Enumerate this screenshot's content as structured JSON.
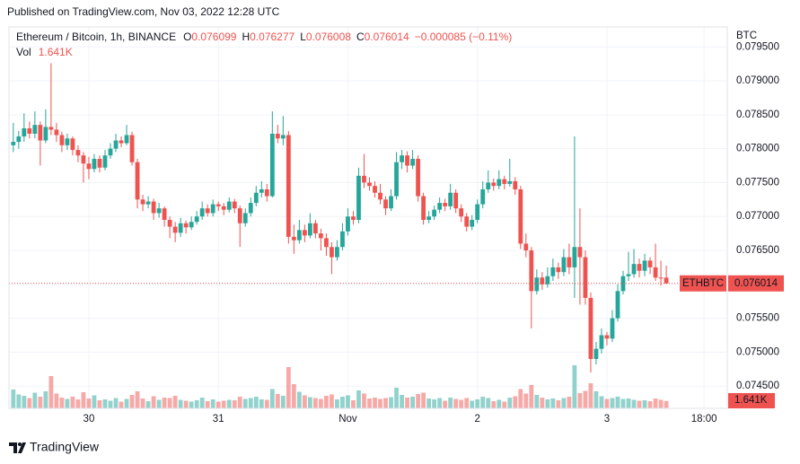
{
  "published": "Published on TradingView.com, Nov 03, 2022 12:28 UTC",
  "footer": "TradingView",
  "chart_data": {
    "type": "candlestick",
    "symbol": "ETHBTC",
    "currency": "BTC",
    "legend": {
      "name": "Ethereum / Bitcoin, 1h, BINANCE",
      "o_label": "O",
      "o": "0.076099",
      "h_label": "H",
      "h": "0.076277",
      "l_label": "L",
      "l": "0.076008",
      "c_label": "C",
      "c": "0.076014",
      "change": "−0.000085 (−0.11%)",
      "vol_label": "Vol"
    },
    "last_volume_label": "1.641K",
    "up_color": "#26a69a",
    "down_color": "#ef5350",
    "grid": true,
    "ylim": [
      0.074172,
      0.079794
    ],
    "yticks": [
      {
        "value": 0.0745,
        "label": "0.074500"
      },
      {
        "value": 0.075,
        "label": "0.075000"
      },
      {
        "value": 0.0755,
        "label": "0.075500"
      },
      {
        "value": 0.076,
        "label": "0.076000"
      },
      {
        "value": 0.0765,
        "label": "0.076500"
      },
      {
        "value": 0.077,
        "label": "0.077000"
      },
      {
        "value": 0.0775,
        "label": "0.077500"
      },
      {
        "value": 0.078,
        "label": "0.078000"
      },
      {
        "value": 0.0785,
        "label": "0.078500"
      },
      {
        "value": 0.079,
        "label": "0.079000"
      },
      {
        "value": 0.0795,
        "label": "0.079500"
      }
    ],
    "xlim": [
      -0.8,
      132.3
    ],
    "xticks": [
      {
        "value": 14,
        "label": "30"
      },
      {
        "value": 38,
        "label": "31"
      },
      {
        "value": 62,
        "label": "Nov"
      },
      {
        "value": 86,
        "label": "2"
      },
      {
        "value": 110,
        "label": "3"
      },
      {
        "value": 128,
        "label": "18:00"
      }
    ],
    "volume_lim": [
      0,
      20000
    ],
    "ohlcv": [
      [
        0.07805,
        0.07838,
        0.07795,
        0.0781,
        4200
      ],
      [
        0.0781,
        0.07826,
        0.078,
        0.07818,
        3100
      ],
      [
        0.07818,
        0.07852,
        0.0781,
        0.0783,
        2800
      ],
      [
        0.0783,
        0.0784,
        0.07815,
        0.07822,
        2300
      ],
      [
        0.07822,
        0.07855,
        0.07815,
        0.07835,
        3500
      ],
      [
        0.07835,
        0.0784,
        0.07775,
        0.07812,
        2600
      ],
      [
        0.07812,
        0.07858,
        0.07808,
        0.07832,
        3800
      ],
      [
        0.07832,
        0.07926,
        0.0782,
        0.07828,
        7200
      ],
      [
        0.07828,
        0.07838,
        0.0781,
        0.0782,
        3300
      ],
      [
        0.0782,
        0.07825,
        0.07795,
        0.07805,
        2400
      ],
      [
        0.07805,
        0.07822,
        0.07798,
        0.07815,
        2100
      ],
      [
        0.07815,
        0.07818,
        0.0779,
        0.07798,
        2600
      ],
      [
        0.07798,
        0.07805,
        0.0778,
        0.0779,
        2000
      ],
      [
        0.0779,
        0.07795,
        0.0775,
        0.07778,
        3600
      ],
      [
        0.07778,
        0.07788,
        0.07755,
        0.0777,
        2200
      ],
      [
        0.0777,
        0.07792,
        0.07765,
        0.07785,
        2900
      ],
      [
        0.07785,
        0.0779,
        0.07765,
        0.07772,
        1800
      ],
      [
        0.07772,
        0.07798,
        0.07768,
        0.0779,
        2000
      ],
      [
        0.0779,
        0.07808,
        0.07785,
        0.078,
        1700
      ],
      [
        0.078,
        0.07822,
        0.07795,
        0.07812,
        2300
      ],
      [
        0.07812,
        0.07818,
        0.07802,
        0.07808,
        1500
      ],
      [
        0.07808,
        0.07835,
        0.07805,
        0.0782,
        2100
      ],
      [
        0.0782,
        0.07825,
        0.07775,
        0.0778,
        3000
      ],
      [
        0.0778,
        0.07785,
        0.07712,
        0.07725,
        3800
      ],
      [
        0.07725,
        0.07732,
        0.07708,
        0.07718,
        2200
      ],
      [
        0.07718,
        0.0773,
        0.07712,
        0.07722,
        1600
      ],
      [
        0.07722,
        0.07726,
        0.07695,
        0.07705,
        2700
      ],
      [
        0.07705,
        0.0772,
        0.07698,
        0.07712,
        1900
      ],
      [
        0.07712,
        0.07715,
        0.07685,
        0.07695,
        2400
      ],
      [
        0.07695,
        0.077,
        0.07668,
        0.07685,
        2300
      ],
      [
        0.07685,
        0.07692,
        0.07662,
        0.07676,
        2800
      ],
      [
        0.07676,
        0.07698,
        0.0767,
        0.0769,
        1900
      ],
      [
        0.0769,
        0.07694,
        0.07675,
        0.07684,
        1700
      ],
      [
        0.07684,
        0.077,
        0.0768,
        0.07692,
        1500
      ],
      [
        0.07692,
        0.07708,
        0.07688,
        0.077,
        1800
      ],
      [
        0.077,
        0.07722,
        0.07695,
        0.07712,
        2400
      ],
      [
        0.07712,
        0.07718,
        0.077,
        0.07705,
        1600
      ],
      [
        0.07705,
        0.07725,
        0.077,
        0.07718,
        2000
      ],
      [
        0.07718,
        0.07722,
        0.07708,
        0.07715,
        1500
      ],
      [
        0.07715,
        0.0772,
        0.07702,
        0.0771,
        1700
      ],
      [
        0.0771,
        0.07728,
        0.07706,
        0.07722,
        1900
      ],
      [
        0.07722,
        0.07726,
        0.07705,
        0.07712,
        1800
      ],
      [
        0.07712,
        0.07716,
        0.07655,
        0.0769,
        2600
      ],
      [
        0.0769,
        0.07712,
        0.07685,
        0.07705,
        2100
      ],
      [
        0.07705,
        0.07728,
        0.077,
        0.0772,
        2300
      ],
      [
        0.0772,
        0.07745,
        0.07715,
        0.07735,
        2600
      ],
      [
        0.07735,
        0.07752,
        0.07728,
        0.0774,
        2000
      ],
      [
        0.0774,
        0.07748,
        0.07722,
        0.0773,
        1900
      ],
      [
        0.0773,
        0.07855,
        0.07728,
        0.07822,
        4300
      ],
      [
        0.07822,
        0.07835,
        0.07808,
        0.07815,
        3200
      ],
      [
        0.07815,
        0.07848,
        0.07805,
        0.0782,
        2800
      ],
      [
        0.0782,
        0.07826,
        0.0766,
        0.0767,
        9200
      ],
      [
        0.0767,
        0.07688,
        0.07645,
        0.07665,
        5400
      ],
      [
        0.07665,
        0.07695,
        0.0766,
        0.0768,
        3700
      ],
      [
        0.0768,
        0.07688,
        0.07662,
        0.07672,
        2900
      ],
      [
        0.07672,
        0.07705,
        0.07668,
        0.0769,
        2500
      ],
      [
        0.0769,
        0.07695,
        0.07668,
        0.07675,
        2300
      ],
      [
        0.07675,
        0.07682,
        0.0765,
        0.07668,
        2100
      ],
      [
        0.07668,
        0.07675,
        0.07642,
        0.07655,
        2800
      ],
      [
        0.07655,
        0.07662,
        0.07615,
        0.0764,
        3100
      ],
      [
        0.0764,
        0.07665,
        0.07635,
        0.07655,
        2000
      ],
      [
        0.07655,
        0.0769,
        0.0765,
        0.07678,
        2600
      ],
      [
        0.07678,
        0.07712,
        0.07672,
        0.077,
        2900
      ],
      [
        0.077,
        0.07708,
        0.07688,
        0.07695,
        1800
      ],
      [
        0.07695,
        0.07772,
        0.0769,
        0.0776,
        4000
      ],
      [
        0.0776,
        0.07792,
        0.07742,
        0.0775,
        3300
      ],
      [
        0.0775,
        0.07758,
        0.07738,
        0.07745,
        2200
      ],
      [
        0.07745,
        0.07752,
        0.07728,
        0.07735,
        2400
      ],
      [
        0.07735,
        0.07748,
        0.07718,
        0.07725,
        2100
      ],
      [
        0.07725,
        0.0773,
        0.07702,
        0.07712,
        2300
      ],
      [
        0.07712,
        0.0774,
        0.07708,
        0.0773,
        2500
      ],
      [
        0.0773,
        0.07795,
        0.07725,
        0.0778,
        4600
      ],
      [
        0.0778,
        0.07798,
        0.0777,
        0.0779,
        3000
      ],
      [
        0.0779,
        0.07796,
        0.07765,
        0.07775,
        2400
      ],
      [
        0.07775,
        0.07798,
        0.0777,
        0.07785,
        2600
      ],
      [
        0.07785,
        0.0779,
        0.07722,
        0.0773,
        3200
      ],
      [
        0.0773,
        0.07735,
        0.07688,
        0.07695,
        3500
      ],
      [
        0.07695,
        0.07708,
        0.0769,
        0.077,
        2200
      ],
      [
        0.077,
        0.07716,
        0.07695,
        0.0771,
        2000
      ],
      [
        0.0771,
        0.07728,
        0.07705,
        0.0772,
        2300
      ],
      [
        0.0772,
        0.07726,
        0.07708,
        0.07715,
        1700
      ],
      [
        0.07715,
        0.07748,
        0.0771,
        0.07735,
        2400
      ],
      [
        0.07735,
        0.0774,
        0.07705,
        0.07712,
        2100
      ],
      [
        0.07712,
        0.07718,
        0.07692,
        0.077,
        1900
      ],
      [
        0.077,
        0.07705,
        0.07678,
        0.07685,
        2300
      ],
      [
        0.07685,
        0.07702,
        0.0768,
        0.07695,
        1700
      ],
      [
        0.07695,
        0.07725,
        0.0769,
        0.07718,
        2000
      ],
      [
        0.07718,
        0.07752,
        0.07712,
        0.0774,
        2600
      ],
      [
        0.0774,
        0.07768,
        0.07735,
        0.0775,
        2300
      ],
      [
        0.0775,
        0.07756,
        0.07738,
        0.07745,
        1600
      ],
      [
        0.07745,
        0.07768,
        0.0774,
        0.07755,
        1900
      ],
      [
        0.07755,
        0.0776,
        0.0774,
        0.07748,
        1500
      ],
      [
        0.07748,
        0.07785,
        0.07744,
        0.07752,
        2400
      ],
      [
        0.07752,
        0.07758,
        0.07732,
        0.0774,
        2700
      ],
      [
        0.0774,
        0.07745,
        0.07652,
        0.0766,
        4300
      ],
      [
        0.0766,
        0.07675,
        0.0764,
        0.0765,
        3300
      ],
      [
        0.0765,
        0.07655,
        0.07535,
        0.0759,
        5200
      ],
      [
        0.0759,
        0.07622,
        0.07585,
        0.0761,
        3000
      ],
      [
        0.0761,
        0.07618,
        0.07592,
        0.076,
        2400
      ],
      [
        0.076,
        0.07625,
        0.07595,
        0.07612,
        2000
      ],
      [
        0.07612,
        0.07638,
        0.07605,
        0.07625,
        2200
      ],
      [
        0.07625,
        0.07632,
        0.07608,
        0.07618,
        1800
      ],
      [
        0.07618,
        0.07652,
        0.07612,
        0.0764,
        2300
      ],
      [
        0.0764,
        0.0766,
        0.07615,
        0.07625,
        2600
      ],
      [
        0.07625,
        0.07818,
        0.0758,
        0.07655,
        9600
      ],
      [
        0.07655,
        0.07712,
        0.0757,
        0.0764,
        3400
      ],
      [
        0.0764,
        0.0765,
        0.0757,
        0.0758,
        3900
      ],
      [
        0.0758,
        0.07588,
        0.0747,
        0.0749,
        5600
      ],
      [
        0.0749,
        0.07515,
        0.07482,
        0.07505,
        3800
      ],
      [
        0.07505,
        0.07535,
        0.07498,
        0.07525,
        2700
      ],
      [
        0.07525,
        0.0753,
        0.0751,
        0.0752,
        2100
      ],
      [
        0.0752,
        0.07562,
        0.07515,
        0.0755,
        2300
      ],
      [
        0.0755,
        0.076,
        0.07545,
        0.0759,
        2600
      ],
      [
        0.0759,
        0.0762,
        0.07585,
        0.07612,
        2100
      ],
      [
        0.07612,
        0.07648,
        0.07605,
        0.07615,
        2200
      ],
      [
        0.07615,
        0.07652,
        0.0761,
        0.0763,
        1900
      ],
      [
        0.0763,
        0.07638,
        0.0761,
        0.0762,
        1700
      ],
      [
        0.0762,
        0.07645,
        0.07612,
        0.07635,
        1800
      ],
      [
        0.07635,
        0.0764,
        0.07615,
        0.07625,
        1600
      ],
      [
        0.07625,
        0.0766,
        0.07605,
        0.0761,
        2200
      ],
      [
        0.0761,
        0.07635,
        0.07598,
        0.076099,
        1900
      ],
      [
        0.076099,
        0.076277,
        0.076008,
        0.076014,
        1641
      ]
    ]
  }
}
